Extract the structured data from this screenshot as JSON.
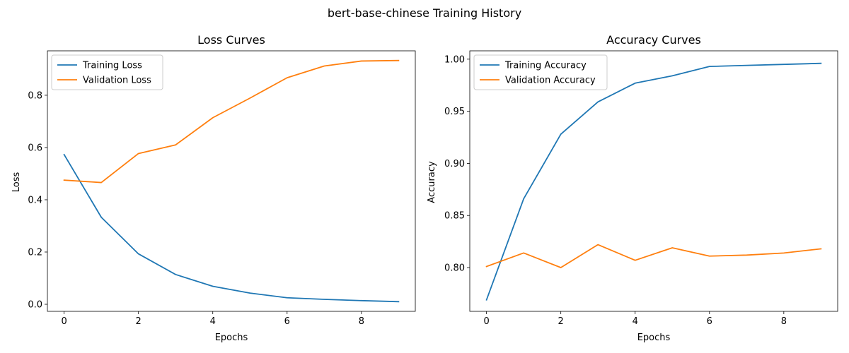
{
  "figure": {
    "suptitle": "bert-base-chinese Training History"
  },
  "chart_data": [
    {
      "type": "line",
      "title": "Loss Curves",
      "xlabel": "Epochs",
      "ylabel": "Loss",
      "x": [
        0,
        1,
        2,
        3,
        4,
        5,
        6,
        7,
        8,
        9
      ],
      "xlim": [
        -0.45,
        9.45
      ],
      "ylim": [
        -0.027,
        0.97
      ],
      "xticks": [
        0,
        2,
        4,
        6,
        8
      ],
      "yticks": [
        0.0,
        0.2,
        0.4,
        0.6,
        0.8
      ],
      "ytick_labels": [
        "0.0",
        "0.2",
        "0.4",
        "0.6",
        "0.8"
      ],
      "legend_position": "upper-left",
      "grid": false,
      "series": [
        {
          "name": "Training Loss",
          "color": "#1f77b4",
          "values": [
            0.573,
            0.333,
            0.193,
            0.114,
            0.069,
            0.043,
            0.025,
            0.019,
            0.014,
            0.01
          ]
        },
        {
          "name": "Validation Loss",
          "color": "#ff7f0e",
          "values": [
            0.475,
            0.466,
            0.577,
            0.61,
            0.714,
            0.789,
            0.867,
            0.912,
            0.931,
            0.933
          ]
        }
      ]
    },
    {
      "type": "line",
      "title": "Accuracy Curves",
      "xlabel": "Epochs",
      "ylabel": "Accuracy",
      "x": [
        0,
        1,
        2,
        3,
        4,
        5,
        6,
        7,
        8,
        9
      ],
      "xlim": [
        -0.45,
        9.45
      ],
      "ylim": [
        0.758,
        1.008
      ],
      "xticks": [
        0,
        2,
        4,
        6,
        8
      ],
      "yticks": [
        0.8,
        0.85,
        0.9,
        0.95,
        1.0
      ],
      "ytick_labels": [
        "0.80",
        "0.85",
        "0.90",
        "0.95",
        "1.00"
      ],
      "legend_position": "upper-left",
      "grid": false,
      "series": [
        {
          "name": "Training Accuracy",
          "color": "#1f77b4",
          "values": [
            0.769,
            0.866,
            0.928,
            0.959,
            0.977,
            0.984,
            0.993,
            0.994,
            0.995,
            0.996
          ]
        },
        {
          "name": "Validation Accuracy",
          "color": "#ff7f0e",
          "values": [
            0.801,
            0.814,
            0.8,
            0.822,
            0.807,
            0.819,
            0.811,
            0.812,
            0.814,
            0.818
          ]
        }
      ]
    }
  ]
}
